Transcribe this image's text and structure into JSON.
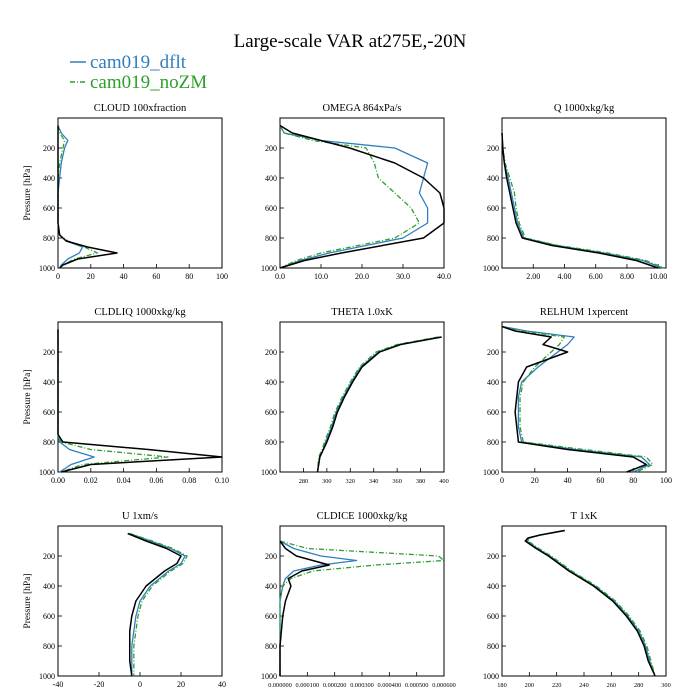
{
  "title": "Large-scale VAR at275E,-20N",
  "colors": {
    "cam019_dflt": "#2f7fbf",
    "cam019_noZM": "#2ca02c",
    "obs": "#000000"
  },
  "chart_data": {
    "type": "line",
    "title": "Large-scale VAR at275E,-20N",
    "legend": {
      "placement": "top-left",
      "entries": [
        {
          "name": "cam019_dflt",
          "color": "#2f7fbf",
          "style": "solid"
        },
        {
          "name": "cam019_noZM",
          "color": "#2ca02c",
          "style": "dash-dot"
        }
      ]
    },
    "panels": [
      {
        "title": "CLOUD 100xfraction",
        "ylabel": "Pressure [hPa]",
        "xlim": [
          0,
          100
        ],
        "ylim": [
          1000,
          0
        ],
        "grid": false,
        "xticks": [
          "0",
          "20",
          "40",
          "60",
          "80",
          "100"
        ],
        "yticks": [
          "200",
          "400",
          "600",
          "800",
          "1000"
        ],
        "p": [
          50,
          100,
          150,
          200,
          300,
          400,
          500,
          600,
          700,
          780,
          820,
          860,
          900,
          940,
          980,
          1000
        ],
        "series": [
          {
            "name": "cam019_dflt",
            "values": [
              0,
              2,
              6,
              4,
              2,
              1,
              0,
              0,
              0,
              1,
              5,
              15,
              13,
              6,
              2,
              1
            ]
          },
          {
            "name": "cam019_noZM",
            "values": [
              0,
              1,
              4,
              3,
              1,
              0,
              0,
              0,
              0,
              1,
              6,
              16,
              24,
              10,
              3,
              1
            ]
          },
          {
            "values": [
              0,
              0,
              0,
              0,
              0,
              0,
              0,
              0,
              0,
              1,
              5,
              18,
              36,
              12,
              3,
              1
            ]
          }
        ]
      },
      {
        "title": "OMEGA 864xPa/s",
        "ylabel": "",
        "xlim": [
          0,
          40
        ],
        "ylim": [
          1000,
          0
        ],
        "grid": false,
        "xticks": [
          "0.0",
          "10.0",
          "20.0",
          "30.0",
          "40.0"
        ],
        "yticks": [
          "200",
          "400",
          "600",
          "800",
          "1000"
        ],
        "p": [
          50,
          100,
          150,
          200,
          300,
          400,
          500,
          600,
          700,
          800,
          900,
          950,
          1000
        ],
        "series": [
          {
            "name": "cam019_dflt",
            "values": [
              0,
              1,
              10,
              28,
              36,
              35,
              34,
              36,
              36,
              30,
              12,
              5,
              0
            ]
          },
          {
            "name": "cam019_noZM",
            "values": [
              0,
              1,
              8,
              21,
              23,
              24,
              28,
              32,
              34,
              28,
              10,
              4,
              0
            ]
          },
          {
            "values": [
              0,
              3,
              10,
              17,
              28,
              35,
              39,
              40,
              40,
              35,
              15,
              6,
              0
            ]
          }
        ]
      },
      {
        "title": "Q 1000xkg/kg",
        "ylabel": "",
        "xlim": [
          0,
          10.5
        ],
        "ylim": [
          1000,
          0
        ],
        "grid": false,
        "xticks": [
          "2.00",
          "4.00",
          "6.00",
          "8.00",
          "10.00"
        ],
        "yticks": [
          "200",
          "400",
          "600",
          "800",
          "1000"
        ],
        "p": [
          100,
          200,
          300,
          400,
          500,
          600,
          700,
          800,
          850,
          900,
          950,
          1000
        ],
        "series": [
          {
            "name": "cam019_dflt",
            "values": [
              0.0,
              0.05,
              0.15,
              0.4,
              0.6,
              0.8,
              1.0,
              1.4,
              3.5,
              6.5,
              9.0,
              10.3
            ]
          },
          {
            "name": "cam019_noZM",
            "values": [
              0.0,
              0.05,
              0.2,
              0.5,
              0.8,
              0.9,
              1.1,
              1.5,
              3.6,
              6.8,
              9.2,
              10.4
            ]
          },
          {
            "values": [
              0.0,
              0.05,
              0.15,
              0.3,
              0.5,
              0.7,
              0.9,
              1.3,
              3.2,
              6.2,
              8.6,
              10.0
            ]
          }
        ]
      },
      {
        "title": "CLDLIQ 1000xkg/kg",
        "ylabel": "Pressure [hPa]",
        "xlim": [
          0,
          0.1
        ],
        "ylim": [
          1000,
          0
        ],
        "grid": false,
        "xticks": [
          "0.00",
          "0.02",
          "0.04",
          "0.06",
          "0.08",
          "0.10"
        ],
        "yticks": [
          "200",
          "400",
          "600",
          "800",
          "1000"
        ],
        "p": [
          50,
          200,
          400,
          600,
          750,
          800,
          850,
          900,
          950,
          1000
        ],
        "series": [
          {
            "name": "cam019_dflt",
            "values": [
              0,
              0,
              0,
              0,
              0,
              0.001,
              0.007,
              0.022,
              0.008,
              0.001
            ]
          },
          {
            "name": "cam019_noZM",
            "values": [
              0,
              0,
              0,
              0,
              0,
              0.002,
              0.02,
              0.067,
              0.015,
              0.002
            ]
          },
          {
            "values": [
              0,
              0,
              0,
              0,
              0,
              0.003,
              0.055,
              0.1,
              0.02,
              0.002
            ]
          }
        ]
      },
      {
        "title": "THETA 1.0xK",
        "ylabel": "",
        "xlim": [
          260,
          400
        ],
        "ylim": [
          1000,
          0
        ],
        "grid": false,
        "xticks": [
          "280",
          "300",
          "320",
          "340",
          "360",
          "380",
          "400"
        ],
        "yticks": [
          "200",
          "400",
          "600",
          "800",
          "1000"
        ],
        "p": [
          100,
          150,
          200,
          300,
          400,
          500,
          600,
          700,
          800,
          850,
          900,
          1000
        ],
        "series": [
          {
            "name": "cam019_dflt",
            "values": [
              397,
              362,
              344,
              329,
              321,
              314,
              308,
              304,
              299,
              297,
              294,
              292
            ]
          },
          {
            "name": "cam019_noZM",
            "values": [
              395,
              360,
              342,
              328,
              320,
              313,
              307,
              303,
              298,
              296,
              293,
              292
            ]
          },
          {
            "values": [
              398,
              363,
              345,
              330,
              322,
              315,
              309,
              305,
              300,
              297,
              294,
              292
            ]
          }
        ]
      },
      {
        "title": "RELHUM 1xpercent",
        "ylabel": "",
        "xlim": [
          0,
          100
        ],
        "ylim": [
          1000,
          0
        ],
        "grid": false,
        "xticks": [
          "0",
          "20",
          "40",
          "60",
          "80",
          "100"
        ],
        "yticks": [
          "200",
          "400",
          "600",
          "800",
          "1000"
        ],
        "p": [
          30,
          60,
          100,
          150,
          200,
          300,
          400,
          500,
          600,
          700,
          800,
          850,
          900,
          950,
          1000
        ],
        "series": [
          {
            "name": "cam019_dflt",
            "values": [
              0,
              15,
              44,
              40,
              34,
              22,
              12,
              10,
              10,
              10,
              12,
              45,
              85,
              90,
              80
            ]
          },
          {
            "name": "cam019_noZM",
            "values": [
              0,
              12,
              38,
              35,
              30,
              20,
              13,
              11,
              11,
              11,
              13,
              50,
              88,
              92,
              82
            ]
          },
          {
            "values": [
              0,
              8,
              30,
              25,
              40,
              15,
              10,
              9,
              8,
              9,
              10,
              40,
              80,
              88,
              76
            ]
          }
        ]
      },
      {
        "title": "U 1xm/s",
        "ylabel": "Pressure [hPa]",
        "xlim": [
          -40,
          40
        ],
        "ylim": [
          1000,
          0
        ],
        "grid": false,
        "xticks": [
          "-40",
          "-20",
          "0",
          "20",
          "40"
        ],
        "yticks": [
          "200",
          "400",
          "600",
          "800",
          "1000"
        ],
        "p": [
          50,
          100,
          150,
          200,
          250,
          300,
          400,
          500,
          600,
          700,
          800,
          900,
          1000
        ],
        "series": [
          {
            "name": "cam019_dflt",
            "values": [
              -5,
              5,
              15,
              22,
              20,
              14,
              5,
              0,
              -2,
              -3,
              -4,
              -4,
              -4
            ]
          },
          {
            "name": "cam019_noZM",
            "values": [
              -5,
              6,
              16,
              23,
              21,
              15,
              6,
              1,
              -1,
              -2,
              -3,
              -3,
              -3
            ]
          },
          {
            "values": [
              -6,
              3,
              13,
              20,
              18,
              12,
              3,
              -2,
              -4,
              -5,
              -5,
              -5,
              -4
            ]
          }
        ]
      },
      {
        "title": "CLDICE 1000xkg/kg",
        "ylabel": "",
        "xlim": [
          0,
          0.0006
        ],
        "ylim": [
          1000,
          0
        ],
        "grid": false,
        "xticks": [
          "0.000000",
          "0.000100",
          "0.000200",
          "0.000300",
          "0.000400",
          "0.000500",
          "0.000600"
        ],
        "yticks": [
          "200",
          "400",
          "600",
          "800",
          "1000"
        ],
        "p": [
          100,
          150,
          200,
          230,
          260,
          300,
          350,
          400,
          500,
          600,
          800,
          1000
        ],
        "series": [
          {
            "name": "cam019_dflt",
            "values": [
              0,
              5e-05,
              0.00015,
              0.00028,
              0.00015,
              5e-05,
              2e-05,
              1e-05,
              0,
              0,
              0,
              0
            ]
          },
          {
            "name": "cam019_noZM",
            "values": [
              0,
              0.0001,
              0.00058,
              0.0006,
              0.00035,
              0.00012,
              4e-05,
              1e-05,
              0,
              0,
              0,
              0
            ]
          },
          {
            "values": [
              0,
              2e-05,
              6e-05,
              0.00012,
              0.00018,
              8e-05,
              3e-05,
              4e-05,
              2e-05,
              1e-05,
              0,
              0
            ]
          }
        ]
      },
      {
        "title": "T 1xK",
        "ylabel": "",
        "xlim": [
          180,
          300
        ],
        "ylim": [
          1000,
          0
        ],
        "grid": false,
        "xticks": [
          "180",
          "200",
          "220",
          "240",
          "260",
          "280",
          "300"
        ],
        "yticks": [
          "200",
          "400",
          "600",
          "800",
          "1000"
        ],
        "p": [
          30,
          60,
          80,
          100,
          150,
          200,
          300,
          400,
          500,
          600,
          700,
          800,
          900,
          1000
        ],
        "series": [
          {
            "name": "cam019_dflt",
            "values": [
              225,
              208,
              200,
              198,
              206,
              215,
              230,
              248,
              262,
              272,
              280,
              285,
              288,
              292
            ]
          },
          {
            "name": "cam019_noZM",
            "values": [
              225,
              208,
              200,
              199,
              207,
              216,
              231,
              249,
              263,
              273,
              281,
              286,
              289,
              292
            ]
          },
          {
            "values": [
              226,
              208,
              199,
              197,
              205,
              214,
              229,
              247,
              261,
              271,
              279,
              284,
              287,
              292
            ]
          }
        ]
      }
    ]
  }
}
